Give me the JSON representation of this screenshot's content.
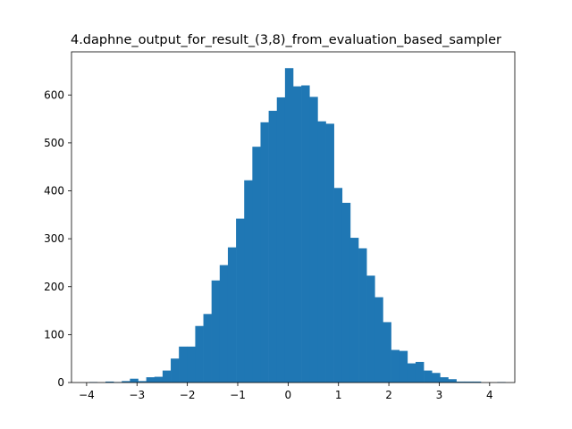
{
  "chart_data": {
    "type": "bar",
    "title": "4.daphne_output_for_result_(3,8)_from_evaluation_based_sampler",
    "xlabel": "",
    "ylabel": "",
    "xlim": [
      -4.3,
      4.5
    ],
    "ylim": [
      0,
      690
    ],
    "xticks": [
      "−4",
      "−3",
      "−2",
      "−1",
      "0",
      "1",
      "2",
      "3",
      "4"
    ],
    "yticks": [
      "0",
      "100",
      "200",
      "300",
      "400",
      "500",
      "600"
    ],
    "bin_edges_start": -3.95,
    "bin_width": 0.162,
    "values": [
      1,
      0,
      2,
      1,
      3,
      8,
      3,
      11,
      12,
      25,
      50,
      75,
      75,
      118,
      143,
      213,
      245,
      282,
      342,
      422,
      492,
      543,
      567,
      595,
      656,
      618,
      620,
      596,
      545,
      540,
      406,
      375,
      302,
      280,
      223,
      178,
      126,
      68,
      66,
      40,
      43,
      25,
      20,
      11,
      7,
      2,
      2,
      2,
      0,
      0,
      1
    ],
    "color": "#1f77b4",
    "grid": false
  }
}
